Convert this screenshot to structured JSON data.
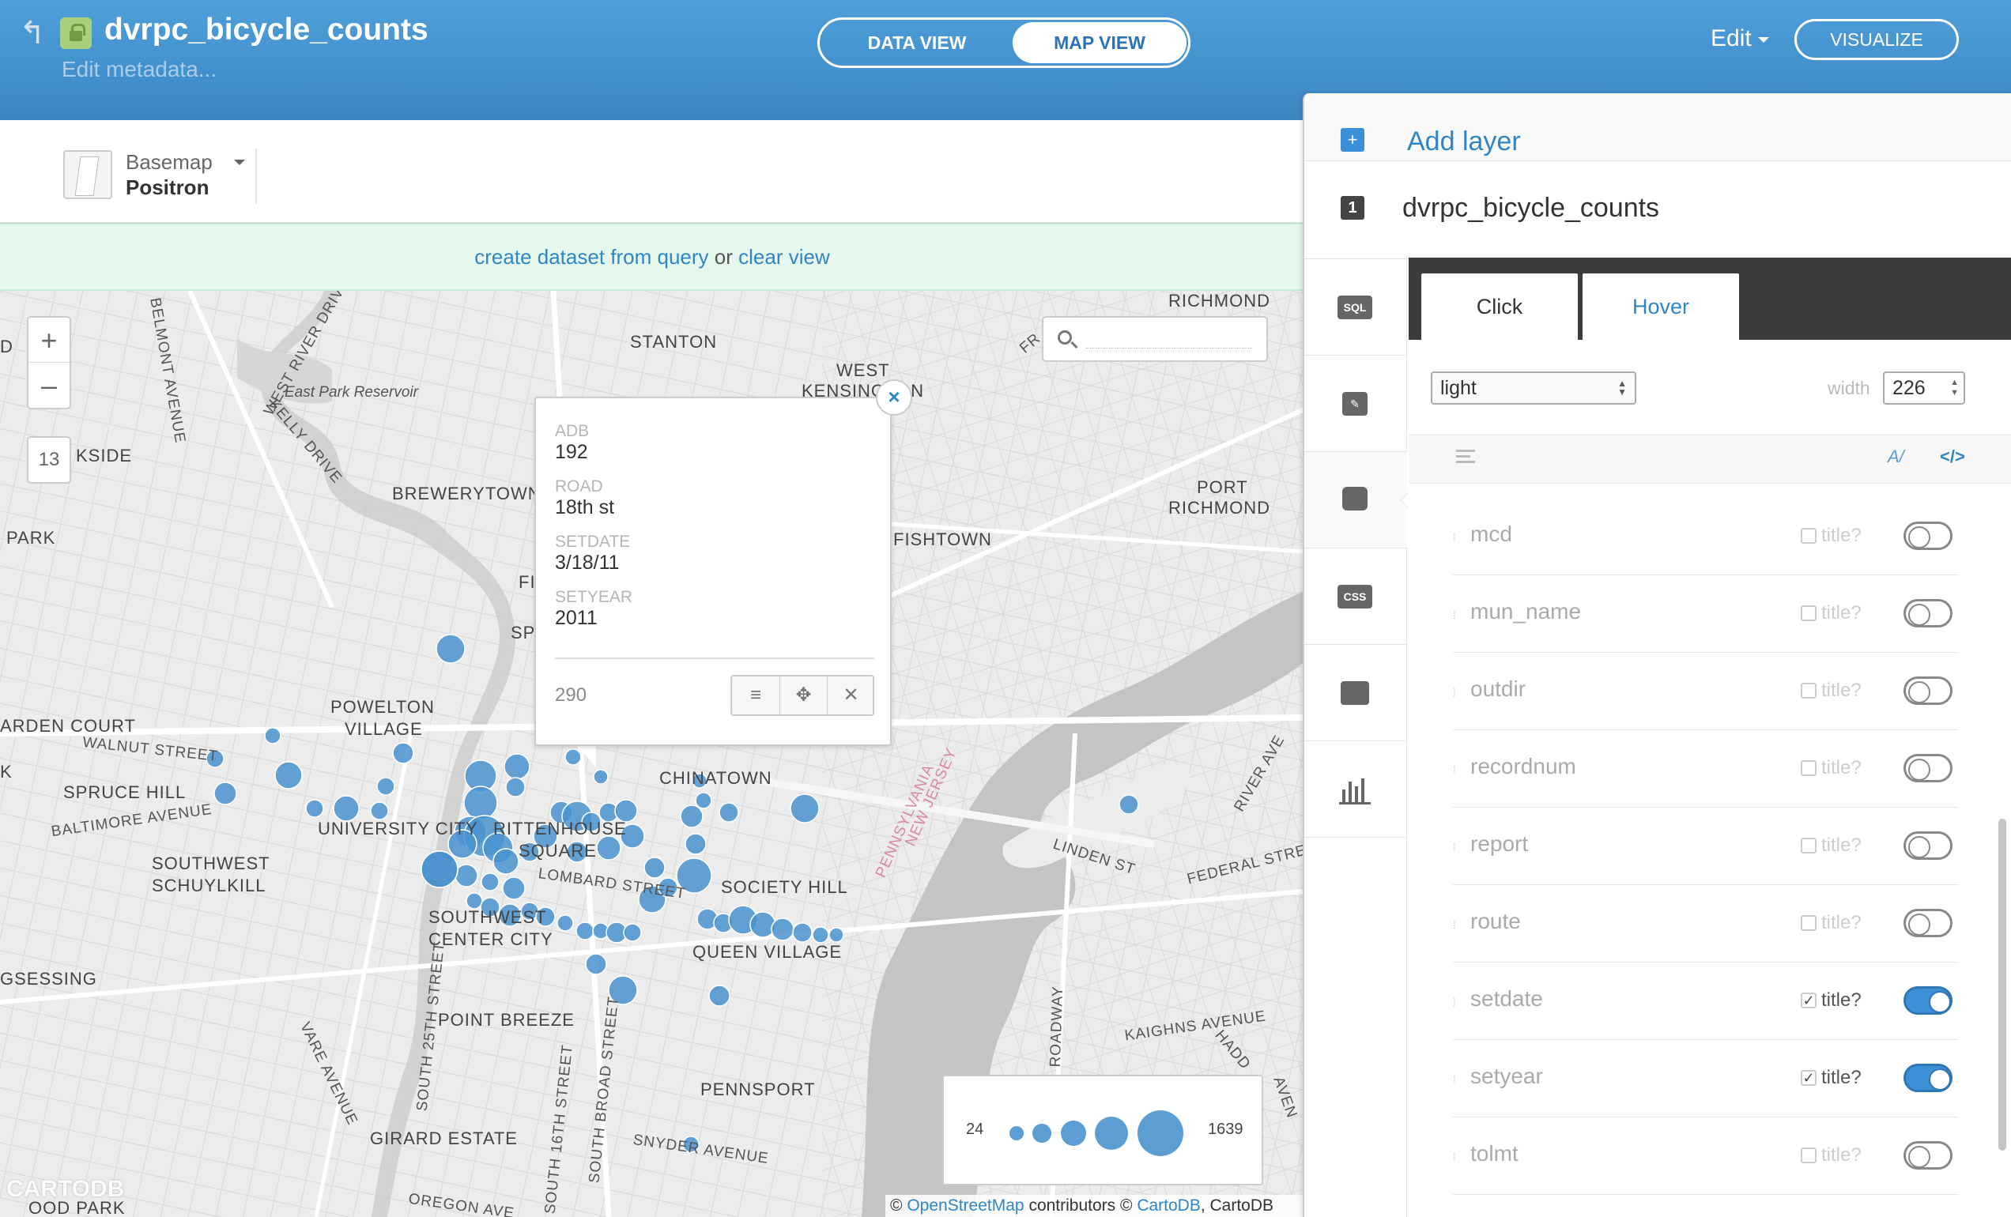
{
  "header": {
    "title": "dvrpc_bicycle_counts",
    "subtitle": "Edit metadata...",
    "view_data": "DATA VIEW",
    "view_map": "MAP VIEW",
    "edit": "Edit",
    "visualize": "VISUALIZE"
  },
  "toolbar": {
    "basemap_label": "Basemap",
    "basemap_value": "Positron"
  },
  "querybar": {
    "create_link": "create dataset from query",
    "or": "or",
    "clear_link": "clear view"
  },
  "map": {
    "zoom_in": "+",
    "zoom_out": "–",
    "zoom_level": "13",
    "labels": {
      "stanton": "STANTON",
      "richmond": "RICHMOND",
      "west_kensington": "WEST",
      "kensington": "KENSINGTON",
      "east_park_reservoir": "East Park Reservoir",
      "brewerytown": "BREWERYTOWN",
      "park": "PARK",
      "kside": "KSIDE",
      "port_richmond": "PORT",
      "port_richmond2": "RICHMOND",
      "fishtown": "FISHTOWN",
      "powelton": "POWELTON",
      "village": "VILLAGE",
      "arden_court": "ARDEN COURT",
      "walnut_street": "WALNUT STREET",
      "spruce_hill": "SPRUCE HILL",
      "baltimore_avenue": "BALTIMORE AVENUE",
      "university_city": "UNIVERSITY CITY",
      "rittenhouse": "RITTENHOUSE",
      "square": "SQUARE",
      "chinatown": "CHINATOWN",
      "southwest_schuylkill": "SOUTHWEST",
      "schuylkill": "SCHUYLKILL",
      "lombard_street": "LOMBARD STREET",
      "society_hill": "SOCIETY HILL",
      "southwest_center_city": "SOUTHWEST",
      "center_city": "CENTER CITY",
      "queen_village": "QUEEN VILLAGE",
      "gsessing": "GSESSING",
      "point_breeze": "POINT BREEZE",
      "pennsport": "PENNSPORT",
      "girard_estate": "GIRARD ESTATE",
      "snyder_avenue": "SNYDER AVENUE",
      "kaighns_avenue": "KAIGHNS AVENUE",
      "federal_street": "FEDERAL STRE",
      "linden_st": "LINDEN ST",
      "pennsylvania": "PENNSYLVANIA",
      "new_jersey": "NEW JERSEY",
      "belmont_avenue": "BELMONT AVENUE",
      "west_river_drive": "WEST RIVER DRIVE",
      "kelly_drive": "KELLY DRIVE",
      "south_25th": "SOUTH 25TH STREET",
      "south_16th": "SOUTH 16TH STREET",
      "south_broad": "SOUTH BROAD STREET",
      "roadway": "ROADWAY",
      "oregon_ave": "OREGON AVE",
      "wood_park": "OOD PARK",
      "d": "D",
      "k": "K",
      "fr": "FR",
      "ri": "RIVER AVE",
      "hadd": "HADD",
      "aven": "AVEN",
      "fi": "FI",
      "sp": "SP",
      "varea": "VARE AVENUE"
    },
    "popup": {
      "fields": [
        {
          "label": "ADB",
          "value": "192"
        },
        {
          "label": "ROAD",
          "value": "18th st"
        },
        {
          "label": "SETDATE",
          "value": "3/18/11"
        },
        {
          "label": "SETYEAR",
          "value": "2011"
        }
      ],
      "count": "290",
      "close": "×"
    },
    "legend": {
      "min": "24",
      "max": "1639"
    },
    "attribution": {
      "prefix": "©",
      "osm": "OpenStreetMap",
      "middle": "contributors ©",
      "cartodb": "CartoDB",
      "suffix": ", CartoDB"
    },
    "watermark": "CARTODB"
  },
  "panel": {
    "add_layer": "Add layer",
    "layer_number": "1",
    "layer_name": "dvrpc_bicycle_counts",
    "side_icons": [
      "sql-icon",
      "wizard-icon",
      "infowindow-icon",
      "css-icon",
      "legend-icon",
      "chart-icon"
    ],
    "side_icon_labels": {
      "sql": "SQL",
      "css": "CSS"
    },
    "tabs": {
      "click": "Click",
      "hover": "Hover"
    },
    "theme": "light",
    "width_label": "width",
    "width_value": "226",
    "fields": [
      {
        "name": "mcd",
        "title": "title?",
        "checked": false,
        "on": false
      },
      {
        "name": "mun_name",
        "title": "title?",
        "checked": false,
        "on": false
      },
      {
        "name": "outdir",
        "title": "title?",
        "checked": false,
        "on": false
      },
      {
        "name": "recordnum",
        "title": "title?",
        "checked": false,
        "on": false
      },
      {
        "name": "report",
        "title": "title?",
        "checked": false,
        "on": false
      },
      {
        "name": "route",
        "title": "title?",
        "checked": false,
        "on": false
      },
      {
        "name": "setdate",
        "title": "title?",
        "checked": true,
        "on": true
      },
      {
        "name": "setyear",
        "title": "title?",
        "checked": true,
        "on": true
      },
      {
        "name": "tolmt",
        "title": "title?",
        "checked": false,
        "on": false
      }
    ]
  },
  "colors": {
    "header_blue": "#3b87c4",
    "accent": "#2f86c5",
    "dot": "#4a93cf"
  }
}
